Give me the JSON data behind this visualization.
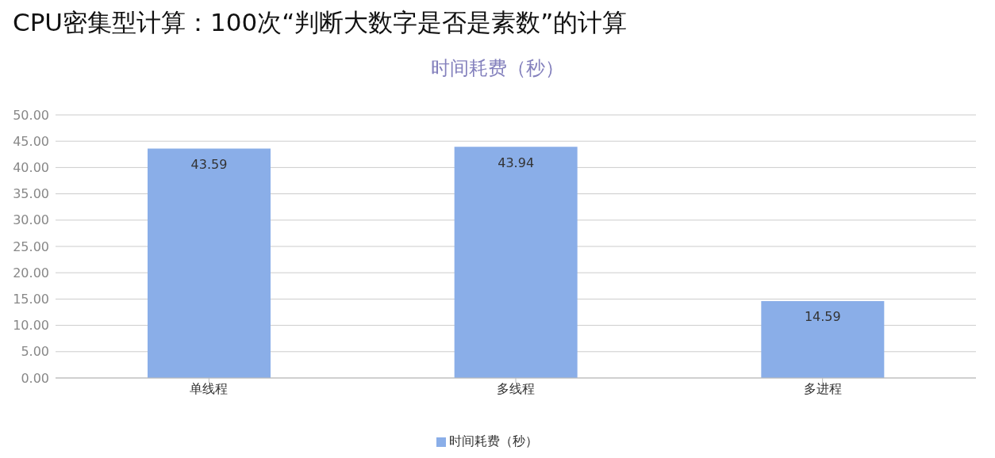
{
  "chart_data": {
    "type": "bar",
    "title": "CPU密集型计算：100次“判断大数字是否是素数”的计算",
    "subtitle": "时间耗费（秒）",
    "categories": [
      "单线程",
      "多线程",
      "多进程"
    ],
    "series": [
      {
        "name": "时间耗费（秒）",
        "color": "#8aaee8",
        "values": [
          43.59,
          43.94,
          14.59
        ]
      }
    ],
    "ylim": [
      0,
      50
    ],
    "yticks": [
      {
        "value": 0,
        "label": "0.00"
      },
      {
        "value": 5,
        "label": "5.00"
      },
      {
        "value": 10,
        "label": "10.00"
      },
      {
        "value": 15,
        "label": "15.00"
      },
      {
        "value": 20,
        "label": "20.00"
      },
      {
        "value": 25,
        "label": "25.00"
      },
      {
        "value": 30,
        "label": "30.00"
      },
      {
        "value": 35,
        "label": "35.00"
      },
      {
        "value": 40,
        "label": "40.00"
      },
      {
        "value": 45,
        "label": "45.00"
      },
      {
        "value": 50,
        "label": "50.00"
      }
    ],
    "grid": "y",
    "legend": "bottom",
    "data_labels": true
  }
}
